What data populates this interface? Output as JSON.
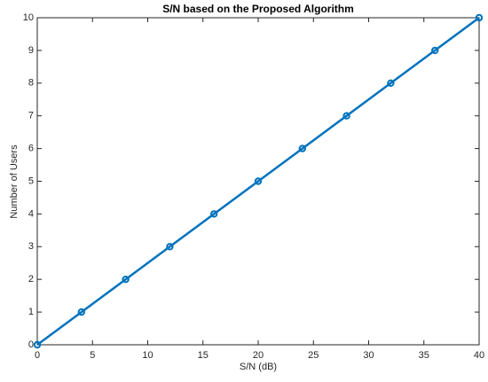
{
  "chart_data": {
    "type": "line",
    "title": "S/N based on the Proposed Algorithm",
    "x_label": "S/N (dB)",
    "y_label": "Number of Users",
    "x": [
      0,
      4,
      8,
      12,
      16,
      20,
      24,
      28,
      32,
      36,
      40
    ],
    "series": [
      {
        "color": "#0072bd",
        "values": [
          0,
          1,
          2,
          3,
          4,
          5,
          6,
          7,
          8,
          9,
          10
        ]
      }
    ],
    "xlim": [
      0,
      40
    ],
    "xticks": [
      0,
      5,
      10,
      15,
      20,
      25,
      30,
      35,
      40
    ],
    "ylim": [
      0,
      10
    ],
    "yticks": [
      0,
      1,
      2,
      3,
      4,
      5,
      6,
      7,
      8,
      9,
      10
    ],
    "grid": false
  }
}
